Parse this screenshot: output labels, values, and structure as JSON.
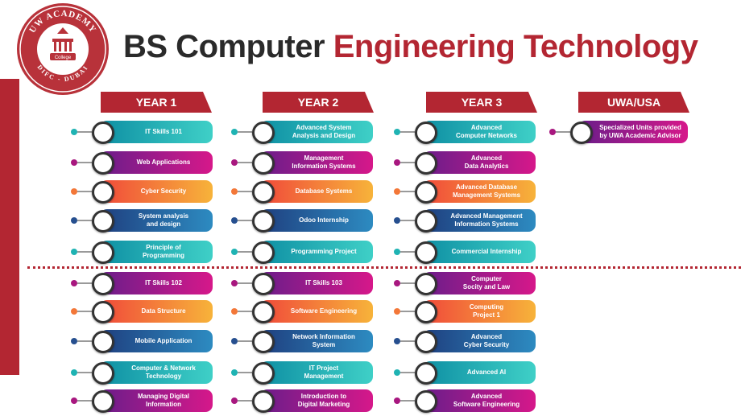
{
  "logo": {
    "top_text": "UW ACADEMY",
    "middle_text": "College",
    "bottom_text": "DIFC - DUBAI"
  },
  "title": {
    "part1": "BS Computer",
    "part2": "Engineering Technology"
  },
  "columns": [
    {
      "header": "YEAR 1",
      "items": [
        {
          "lines": [
            "IT Skills 101"
          ],
          "color": "teal"
        },
        {
          "lines": [
            "Web Applications"
          ],
          "color": "purple"
        },
        {
          "lines": [
            "Cyber Security"
          ],
          "color": "orange"
        },
        {
          "lines": [
            "System analysis",
            "and design"
          ],
          "color": "blue"
        },
        {
          "lines": [
            "Principle of",
            "Programming"
          ],
          "color": "teal"
        },
        {
          "lines": [
            "IT Skills 102"
          ],
          "color": "purple"
        },
        {
          "lines": [
            "Data Structure"
          ],
          "color": "orange"
        },
        {
          "lines": [
            "Mobile Application"
          ],
          "color": "blue"
        },
        {
          "lines": [
            "Computer & Network",
            "Technology"
          ],
          "color": "teal"
        },
        {
          "lines": [
            "Managing Digital",
            "Information"
          ],
          "color": "purple"
        }
      ]
    },
    {
      "header": "YEAR 2",
      "items": [
        {
          "lines": [
            "Advanced System",
            "Analysis and Design"
          ],
          "color": "teal"
        },
        {
          "lines": [
            "Management",
            "Information Systems"
          ],
          "color": "purple"
        },
        {
          "lines": [
            "Database Systems"
          ],
          "color": "orange"
        },
        {
          "lines": [
            "Odoo Internship"
          ],
          "color": "blue"
        },
        {
          "lines": [
            "Programming Project"
          ],
          "color": "teal"
        },
        {
          "lines": [
            "IT Skills 103"
          ],
          "color": "purple"
        },
        {
          "lines": [
            "Software Engineering"
          ],
          "color": "orange"
        },
        {
          "lines": [
            "Network Information",
            "System"
          ],
          "color": "blue"
        },
        {
          "lines": [
            "IT Project",
            "Management"
          ],
          "color": "teal"
        },
        {
          "lines": [
            "Introduction to",
            "Digital Marketing"
          ],
          "color": "purple"
        }
      ]
    },
    {
      "header": "YEAR 3",
      "items": [
        {
          "lines": [
            "Advanced",
            "Computer Networks"
          ],
          "color": "teal"
        },
        {
          "lines": [
            "Advanced",
            "Data Analytics"
          ],
          "color": "purple"
        },
        {
          "lines": [
            "Advanced Database",
            "Management Systems"
          ],
          "color": "orange"
        },
        {
          "lines": [
            "Advanced Management",
            "Information Systems"
          ],
          "color": "blue"
        },
        {
          "lines": [
            "Commercial Internship"
          ],
          "color": "teal"
        },
        {
          "lines": [
            "Computer",
            "Socity and Law"
          ],
          "color": "purple"
        },
        {
          "lines": [
            "Computing",
            "Project 1"
          ],
          "color": "orange"
        },
        {
          "lines": [
            "Advanced",
            "Cyber Security"
          ],
          "color": "blue"
        },
        {
          "lines": [
            "Advanced AI"
          ],
          "color": "teal"
        },
        {
          "lines": [
            "Advanced",
            "Software Engineering"
          ],
          "color": "purple"
        }
      ]
    },
    {
      "header": "UWA/USA",
      "items": [
        {
          "lines": [
            "Specialized Units provided",
            "by UWA Academic Advisor"
          ],
          "color": "purple"
        }
      ]
    }
  ]
}
